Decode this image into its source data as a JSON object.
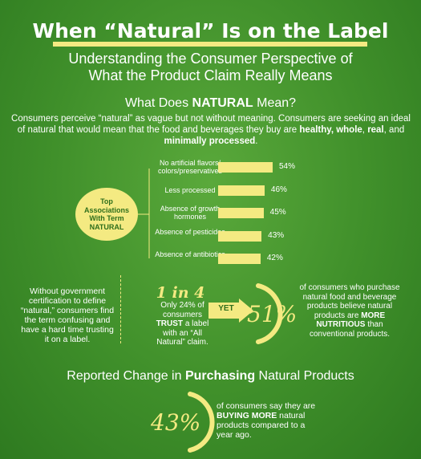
{
  "header": {
    "title": "When “Natural” Is on the Label",
    "subtitle_line1": "Understanding the Consumer Perspective of",
    "subtitle_line2": "What the Product Claim Really Means"
  },
  "section1": {
    "heading_pre": "What Does ",
    "heading_bold": "NATURAL",
    "heading_post": " Mean?",
    "intro_pre": "Consumers perceive “natural” as vague but not without meaning. Consumers are seeking an ideal of natural that would mean that the food and beverages they buy are ",
    "intro_b1": "healthy, whole",
    "intro_mid": ", ",
    "intro_b2": "real",
    "intro_and": ", and ",
    "intro_b3": "minimally processed",
    "intro_end": "."
  },
  "badge": {
    "line1": "Top",
    "line2": "Associations",
    "line3": "With Term",
    "line4": "NATURAL"
  },
  "chart_data": {
    "type": "bar",
    "categories": [
      "No artificial flavors/ colors/preservatives",
      "Less processed",
      "Absence of growth hormones",
      "Absence of pesticides",
      "Absence of antibiotics"
    ],
    "values": [
      54,
      46,
      45,
      43,
      42
    ],
    "value_labels": [
      "54%",
      "46%",
      "45%",
      "43%",
      "42%"
    ],
    "xlim": [
      0,
      54
    ]
  },
  "trust": {
    "left_note": "Without government certification to define “natural,” consumers find the term confusing and have a hard time trusting it on a label.",
    "one_in_four": "1 in 4",
    "line_a": "Only 24% of consumers ",
    "line_b": "TRUST",
    "line_c": " a label with an “All Natural” claim.",
    "yet": "YET",
    "pct": "51%",
    "right_pre": "of consumers who purchase natural food and beverage products believe natural products are ",
    "right_bold": "MORE NUTRITIOUS",
    "right_post": " than conventional products."
  },
  "section2": {
    "heading_pre": "Reported Change in ",
    "heading_bold": "Purchasing",
    "heading_post": " Natural Products",
    "pct": "43%",
    "note_pre": "of consumers say they are ",
    "note_bold": "BUYING MORE",
    "note_post": " natural products compared to a year ago."
  },
  "colors": {
    "accent": "#f4ea82",
    "background": "#3f8f2a"
  }
}
